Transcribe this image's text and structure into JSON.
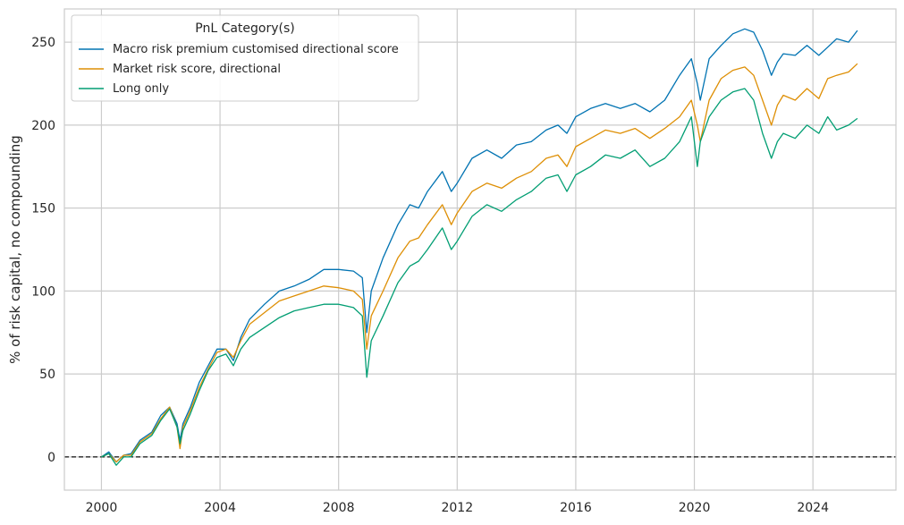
{
  "chart_data": {
    "type": "line",
    "title": "",
    "xlabel": "",
    "ylabel": "% of risk capital, no compounding",
    "xlim": [
      1998.75,
      2026.8
    ],
    "ylim": [
      -20,
      270
    ],
    "xticks": [
      2000,
      2004,
      2008,
      2012,
      2016,
      2020,
      2024
    ],
    "yticks": [
      0,
      50,
      100,
      150,
      200,
      250
    ],
    "grid": true,
    "zero_line": true,
    "legend": {
      "title": "PnL Category(s)",
      "placement": "top-left"
    },
    "series": [
      {
        "name": "Macro risk premium customised directional score",
        "color": "#0173b2",
        "x": [
          2000.0,
          2000.25,
          2000.5,
          2000.75,
          2001.0,
          2001.3,
          2001.7,
          2002.0,
          2002.3,
          2002.55,
          2002.65,
          2002.75,
          2003.0,
          2003.3,
          2003.6,
          2003.9,
          2004.2,
          2004.45,
          2004.7,
          2005.0,
          2005.5,
          2006.0,
          2006.5,
          2007.0,
          2007.5,
          2008.0,
          2008.5,
          2008.8,
          2008.95,
          2009.1,
          2009.5,
          2010.0,
          2010.4,
          2010.7,
          2011.0,
          2011.5,
          2011.8,
          2012.0,
          2012.5,
          2013.0,
          2013.5,
          2014.0,
          2014.5,
          2015.0,
          2015.4,
          2015.7,
          2016.0,
          2016.5,
          2017.0,
          2017.5,
          2018.0,
          2018.5,
          2019.0,
          2019.5,
          2019.9,
          2020.1,
          2020.2,
          2020.5,
          2020.9,
          2021.3,
          2021.7,
          2022.0,
          2022.3,
          2022.6,
          2022.8,
          2023.0,
          2023.4,
          2023.8,
          2024.2,
          2024.5,
          2024.8,
          2025.2,
          2025.5
        ],
        "values": [
          0,
          3,
          -3,
          1,
          2,
          10,
          15,
          25,
          30,
          20,
          10,
          20,
          30,
          45,
          55,
          65,
          65,
          58,
          72,
          83,
          92,
          100,
          103,
          107,
          113,
          113,
          112,
          108,
          75,
          100,
          120,
          140,
          152,
          150,
          160,
          172,
          160,
          165,
          180,
          185,
          180,
          188,
          190,
          197,
          200,
          195,
          205,
          210,
          213,
          210,
          213,
          208,
          215,
          230,
          240,
          225,
          215,
          240,
          248,
          255,
          258,
          256,
          245,
          230,
          238,
          243,
          242,
          248,
          242,
          247,
          252,
          250,
          257
        ]
      },
      {
        "name": "Market risk score, directional",
        "color": "#de8f05",
        "x": [
          2000.0,
          2000.25,
          2000.5,
          2000.75,
          2001.0,
          2001.3,
          2001.7,
          2002.0,
          2002.3,
          2002.55,
          2002.65,
          2002.75,
          2003.0,
          2003.3,
          2003.6,
          2003.9,
          2004.2,
          2004.45,
          2004.7,
          2005.0,
          2005.5,
          2006.0,
          2006.5,
          2007.0,
          2007.5,
          2008.0,
          2008.5,
          2008.8,
          2008.95,
          2009.1,
          2009.5,
          2010.0,
          2010.4,
          2010.7,
          2011.0,
          2011.5,
          2011.8,
          2012.0,
          2012.5,
          2013.0,
          2013.5,
          2014.0,
          2014.5,
          2015.0,
          2015.4,
          2015.7,
          2016.0,
          2016.5,
          2017.0,
          2017.5,
          2018.0,
          2018.5,
          2019.0,
          2019.5,
          2019.9,
          2020.1,
          2020.2,
          2020.5,
          2020.9,
          2021.3,
          2021.7,
          2022.0,
          2022.3,
          2022.6,
          2022.8,
          2023.0,
          2023.4,
          2023.8,
          2024.2,
          2024.5,
          2024.8,
          2025.2,
          2025.5
        ],
        "values": [
          0,
          2,
          -3,
          1,
          1,
          9,
          14,
          23,
          30,
          18,
          5,
          18,
          28,
          42,
          53,
          63,
          65,
          60,
          70,
          80,
          87,
          94,
          97,
          100,
          103,
          102,
          100,
          95,
          65,
          85,
          100,
          120,
          130,
          132,
          140,
          152,
          140,
          147,
          160,
          165,
          162,
          168,
          172,
          180,
          182,
          175,
          187,
          192,
          197,
          195,
          198,
          192,
          198,
          205,
          215,
          200,
          190,
          215,
          228,
          233,
          235,
          230,
          215,
          200,
          212,
          218,
          215,
          222,
          216,
          228,
          230,
          232,
          237
        ]
      },
      {
        "name": "Long only",
        "color": "#029e73",
        "x": [
          2000.0,
          2000.25,
          2000.5,
          2000.75,
          2001.0,
          2001.3,
          2001.7,
          2002.0,
          2002.3,
          2002.55,
          2002.65,
          2002.75,
          2003.0,
          2003.3,
          2003.6,
          2003.9,
          2004.2,
          2004.45,
          2004.7,
          2005.0,
          2005.5,
          2006.0,
          2006.5,
          2007.0,
          2007.5,
          2008.0,
          2008.5,
          2008.8,
          2008.95,
          2009.1,
          2009.5,
          2010.0,
          2010.4,
          2010.7,
          2011.0,
          2011.5,
          2011.8,
          2012.0,
          2012.5,
          2013.0,
          2013.5,
          2014.0,
          2014.5,
          2015.0,
          2015.4,
          2015.7,
          2016.0,
          2016.5,
          2017.0,
          2017.5,
          2018.0,
          2018.5,
          2019.0,
          2019.5,
          2019.9,
          2020.1,
          2020.2,
          2020.5,
          2020.9,
          2021.3,
          2021.7,
          2022.0,
          2022.3,
          2022.6,
          2022.8,
          2023.0,
          2023.4,
          2023.8,
          2024.2,
          2024.5,
          2024.8,
          2025.2,
          2025.5
        ],
        "values": [
          0,
          2,
          -5,
          0,
          0,
          8,
          13,
          22,
          29,
          18,
          8,
          16,
          26,
          40,
          52,
          60,
          62,
          55,
          65,
          72,
          78,
          84,
          88,
          90,
          92,
          92,
          90,
          85,
          48,
          70,
          85,
          105,
          115,
          118,
          125,
          138,
          125,
          130,
          145,
          152,
          148,
          155,
          160,
          168,
          170,
          160,
          170,
          175,
          182,
          180,
          185,
          175,
          180,
          190,
          205,
          175,
          190,
          205,
          215,
          220,
          222,
          215,
          195,
          180,
          190,
          195,
          192,
          200,
          195,
          205,
          197,
          200,
          204
        ]
      }
    ]
  }
}
